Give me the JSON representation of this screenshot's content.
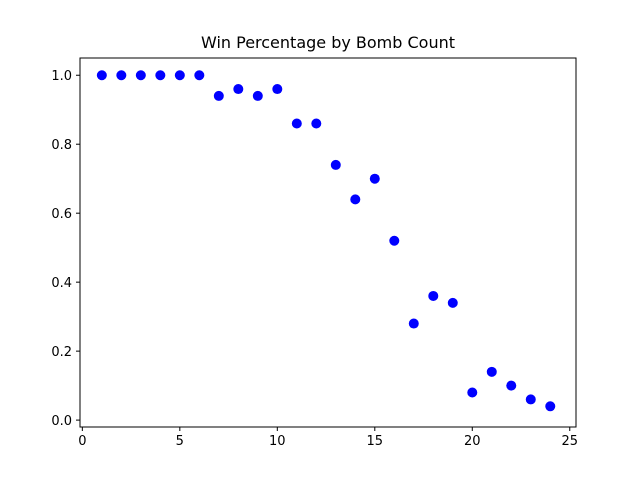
{
  "chart_data": {
    "type": "scatter",
    "title": "Win Percentage by Bomb Count",
    "xlabel": "",
    "ylabel": "",
    "xlim": [
      0,
      25
    ],
    "ylim": [
      0.0,
      1.0
    ],
    "x_ticks": [
      0,
      5,
      10,
      15,
      20,
      25
    ],
    "y_ticks": [
      0.0,
      0.2,
      0.4,
      0.6,
      0.8,
      1.0
    ],
    "x_tick_labels": [
      "0",
      "5",
      "10",
      "15",
      "20",
      "25"
    ],
    "y_tick_labels": [
      "0.0",
      "0.2",
      "0.4",
      "0.6",
      "0.8",
      "1.0"
    ],
    "grid": false,
    "marker_color": "#0000ff",
    "series": [
      {
        "x": [
          1,
          2,
          3,
          4,
          5,
          6,
          7,
          8,
          9,
          10,
          11,
          12,
          13,
          14,
          15,
          16,
          17,
          18,
          19,
          20,
          21,
          22,
          23,
          24
        ],
        "values": [
          1.0,
          1.0,
          1.0,
          1.0,
          1.0,
          1.0,
          0.94,
          0.96,
          0.94,
          0.96,
          0.86,
          0.86,
          0.74,
          0.64,
          0.7,
          0.52,
          0.28,
          0.36,
          0.34,
          0.08,
          0.14,
          0.1,
          0.06,
          0.04
        ]
      }
    ]
  }
}
